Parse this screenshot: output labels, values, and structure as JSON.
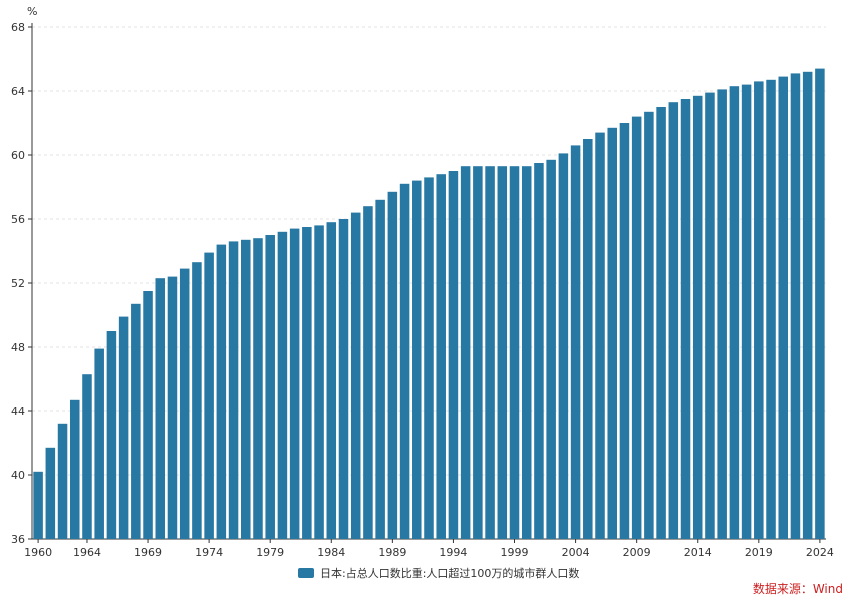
{
  "chart_data": {
    "type": "bar",
    "title": "",
    "xlabel": "",
    "ylabel": "%",
    "ylim": [
      36,
      68
    ],
    "yticks": [
      36,
      40,
      44,
      48,
      52,
      56,
      60,
      64,
      68
    ],
    "xtick_labels": [
      "1960",
      "1964",
      "1969",
      "1974",
      "1979",
      "1984",
      "1989",
      "1994",
      "1999",
      "2004",
      "2009",
      "2014",
      "2019",
      "2024"
    ],
    "categories": [
      "1960",
      "1961",
      "1962",
      "1963",
      "1964",
      "1965",
      "1966",
      "1967",
      "1968",
      "1969",
      "1970",
      "1971",
      "1972",
      "1973",
      "1974",
      "1975",
      "1976",
      "1977",
      "1978",
      "1979",
      "1980",
      "1981",
      "1982",
      "1983",
      "1984",
      "1985",
      "1986",
      "1987",
      "1988",
      "1989",
      "1990",
      "1991",
      "1992",
      "1993",
      "1994",
      "1995",
      "1996",
      "1997",
      "1998",
      "1999",
      "2000",
      "2001",
      "2002",
      "2003",
      "2004",
      "2005",
      "2006",
      "2007",
      "2008",
      "2009",
      "2010",
      "2011",
      "2012",
      "2013",
      "2014",
      "2015",
      "2016",
      "2017",
      "2018",
      "2019",
      "2020",
      "2021",
      "2022",
      "2023",
      "2024"
    ],
    "series": [
      {
        "name": "日本:占总人口数比重:人口超过100万的城市群人口数",
        "color": "#2878a4",
        "values": [
          40.2,
          41.7,
          43.2,
          44.7,
          46.3,
          47.9,
          49.0,
          49.9,
          50.7,
          51.5,
          52.3,
          52.4,
          52.9,
          53.3,
          53.9,
          54.4,
          54.6,
          54.7,
          54.8,
          55.0,
          55.2,
          55.4,
          55.5,
          55.6,
          55.8,
          56.0,
          56.4,
          56.8,
          57.2,
          57.7,
          58.2,
          58.4,
          58.6,
          58.8,
          59.0,
          59.3,
          59.3,
          59.3,
          59.3,
          59.3,
          59.3,
          59.5,
          59.7,
          60.1,
          60.6,
          61.0,
          61.4,
          61.7,
          62.0,
          62.4,
          62.7,
          63.0,
          63.3,
          63.5,
          63.7,
          63.9,
          64.1,
          64.3,
          64.4,
          64.6,
          64.7,
          64.9,
          65.1,
          65.2,
          65.4
        ]
      }
    ],
    "grid": true,
    "legend_position": "bottom"
  },
  "legend": {
    "label": "日本:占总人口数比重:人口超过100万的城市群人口数"
  },
  "source_note": "数据来源：Wind",
  "colors": {
    "bar": "#2878a4",
    "source_text": "#cc1f1f"
  }
}
